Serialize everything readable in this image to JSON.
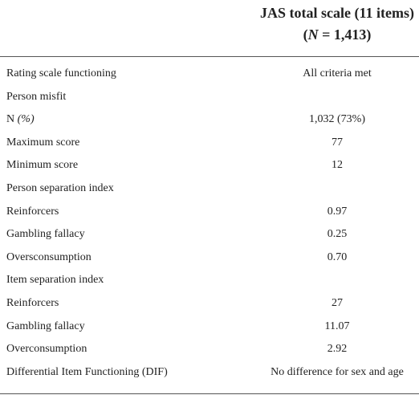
{
  "header": {
    "line1": "JAS total scale (11 items)",
    "line2": [
      "(",
      "N",
      " = 1,413)"
    ]
  },
  "rows": [
    {
      "label": "Rating scale functioning",
      "value": "All criteria met"
    },
    {
      "label": "Person misfit"
    },
    {
      "label": [
        "N",
        " (%)"
      ],
      "value": "1,032 (73%)"
    },
    {
      "label": "Maximum score",
      "value": "77"
    },
    {
      "label": "Minimum score",
      "value": "12"
    },
    {
      "label": "Person separation index"
    },
    {
      "label": "Reinforcers",
      "value": "0.97"
    },
    {
      "label": "Gambling fallacy",
      "value": "0.25"
    },
    {
      "label": "Oversconsumption",
      "value": "0.70"
    },
    {
      "label": "Item separation index"
    },
    {
      "label": "Reinforcers",
      "value": "27"
    },
    {
      "label": "Gambling fallacy",
      "value": "11.07"
    },
    {
      "label": "Overconsumption",
      "value": "2.92"
    },
    {
      "label": "Differential Item Functioning (DIF)",
      "value": "No difference for sex and age"
    }
  ]
}
